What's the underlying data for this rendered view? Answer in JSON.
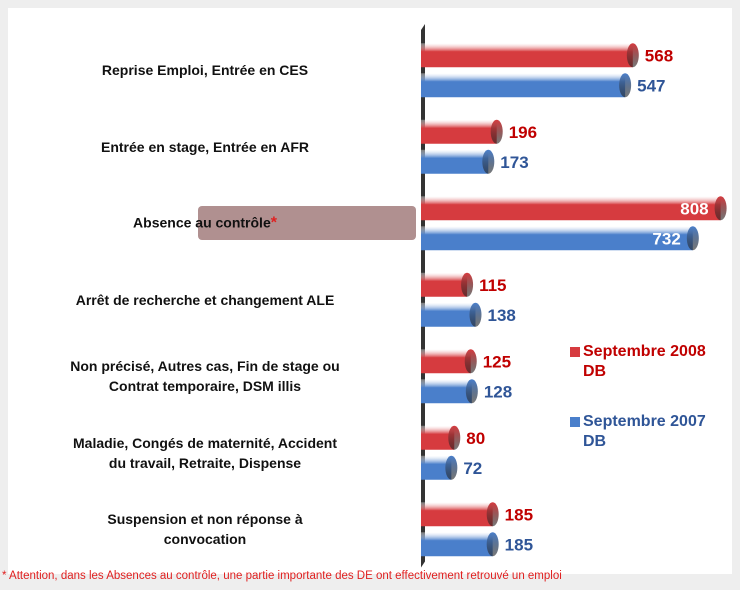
{
  "chart_data": {
    "type": "bar",
    "orientation": "horizontal",
    "categories": [
      "Reprise Emploi, Entrée en CES",
      "Entrée en stage, Entrée en AFR",
      "Absence au contrôle",
      "Arrêt de recherche et changement  ALE",
      "Non précisé, Autres cas, Fin de stage ou\nContrat temporaire, DSM illis",
      "Maladie, Congés de maternité, Accident\ndu travail, Retraite, Dispense",
      "Suspension et non réponse à\nconvocation"
    ],
    "highlight_marker": "*",
    "series": [
      {
        "name": "Septembre 2008 DB",
        "color": "#d63b3f",
        "label_color": "#c00000",
        "values": [
          568,
          196,
          808,
          115,
          125,
          80,
          185
        ]
      },
      {
        "name": "Septembre 2007 DB",
        "color": "#4a7fcb",
        "label_color": "#2f5597",
        "values": [
          547,
          173,
          732,
          138,
          128,
          72,
          185
        ]
      }
    ],
    "xlim": [
      0,
      820
    ],
    "legend": "right",
    "footnote": "* Attention, dans les Absences au contrôle, une partie importante des DE ont effectivement retrouvé un emploi"
  }
}
